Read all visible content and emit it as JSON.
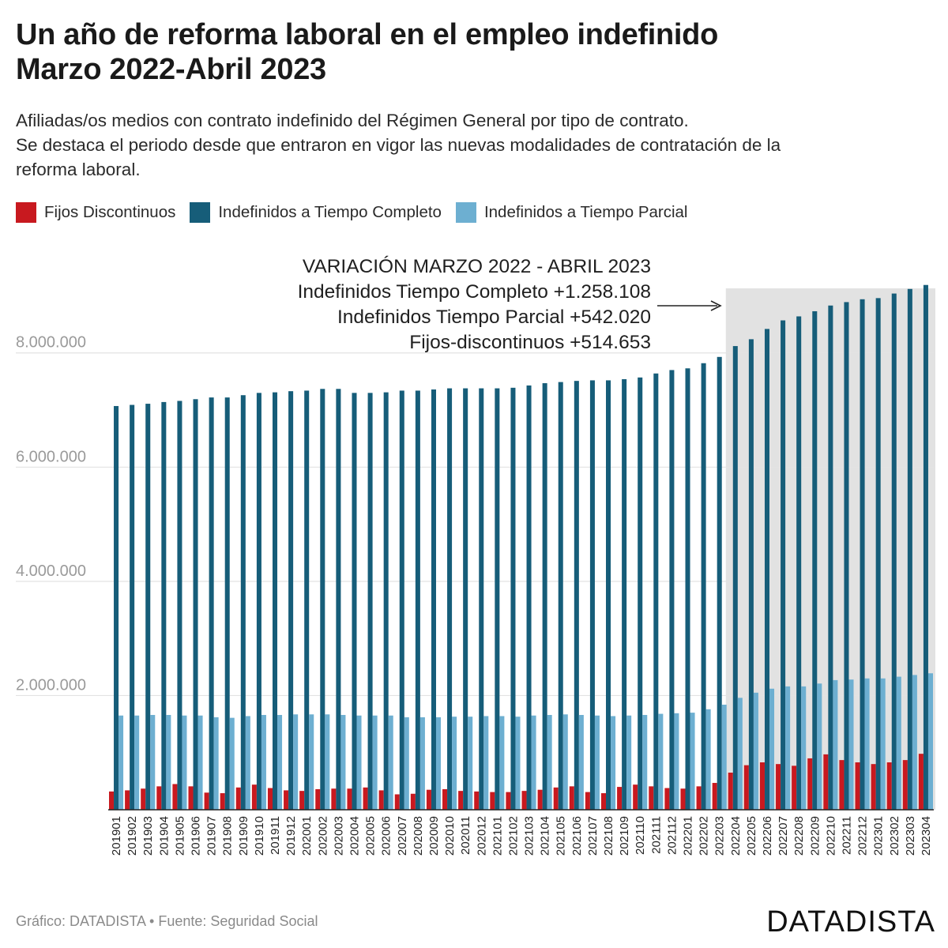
{
  "title_line1": "Un año de reforma laboral en el empleo indefinido",
  "title_line2": "Marzo 2022-Abril 2023",
  "subtitle_line1": "Afiliadas/os medios con contrato indefinido del Régimen General por tipo de contrato.",
  "subtitle_line2": "Se destaca el periodo desde que entraron en vigor las nuevas modalidades de contratación de la",
  "subtitle_line3": "reforma laboral.",
  "legend": [
    {
      "label": "Fijos Discontinuos",
      "color": "#c8191f"
    },
    {
      "label": "Indefinidos a Tiempo Completo",
      "color": "#165d79"
    },
    {
      "label": "Indefinidos a Tiempo Parcial",
      "color": "#6dafd1"
    }
  ],
  "annotation": {
    "line1": "VARIACIÓN MARZO 2022 - ABRIL 2023",
    "line2": "Indefinidos Tiempo Completo +1.258.108",
    "line3": "Indefinidos Tiempo Parcial +542.020",
    "line4": "Fijos-discontinuos +514.653"
  },
  "footer_source": "Gráfico: DATADISTA • Fuente: Seguridad Social",
  "footer_brand": "DATADISTA",
  "chart_data": {
    "type": "bar",
    "categories": [
      "201901",
      "201902",
      "201903",
      "201904",
      "201905",
      "201906",
      "201907",
      "201908",
      "201909",
      "201910",
      "201911",
      "201912",
      "202001",
      "202002",
      "202003",
      "202004",
      "202005",
      "202006",
      "202007",
      "202008",
      "202009",
      "202010",
      "202011",
      "202012",
      "202101",
      "202102",
      "202103",
      "202104",
      "202105",
      "202106",
      "202107",
      "202108",
      "202109",
      "202110",
      "202111",
      "202112",
      "202201",
      "202202",
      "202203",
      "202204",
      "202205",
      "202206",
      "202207",
      "202208",
      "202209",
      "202210",
      "202211",
      "202212",
      "202301",
      "202302",
      "202303",
      "202304"
    ],
    "series": [
      {
        "name": "Fijos Discontinuos",
        "color": "#c8191f",
        "values": [
          320000,
          340000,
          370000,
          410000,
          450000,
          410000,
          300000,
          290000,
          390000,
          440000,
          380000,
          340000,
          330000,
          360000,
          370000,
          370000,
          390000,
          340000,
          270000,
          280000,
          350000,
          360000,
          330000,
          320000,
          310000,
          310000,
          330000,
          350000,
          390000,
          410000,
          310000,
          290000,
          400000,
          440000,
          410000,
          380000,
          370000,
          410000,
          470000,
          650000,
          780000,
          830000,
          800000,
          770000,
          900000,
          970000,
          870000,
          830000,
          800000,
          830000,
          870000,
          980000
        ]
      },
      {
        "name": "Indefinidos a Tiempo Completo",
        "color": "#165d79",
        "values": [
          7070000,
          7090000,
          7110000,
          7140000,
          7160000,
          7190000,
          7220000,
          7220000,
          7260000,
          7300000,
          7310000,
          7330000,
          7340000,
          7370000,
          7370000,
          7300000,
          7300000,
          7310000,
          7340000,
          7340000,
          7360000,
          7380000,
          7380000,
          7380000,
          7380000,
          7390000,
          7430000,
          7470000,
          7490000,
          7510000,
          7520000,
          7520000,
          7540000,
          7570000,
          7640000,
          7700000,
          7730000,
          7820000,
          7930000,
          8120000,
          8240000,
          8420000,
          8570000,
          8640000,
          8730000,
          8830000,
          8890000,
          8940000,
          8960000,
          9040000,
          9120000,
          9190000
        ]
      },
      {
        "name": "Indefinidos a Tiempo Parcial",
        "color": "#6dafd1",
        "values": [
          1650000,
          1650000,
          1660000,
          1660000,
          1650000,
          1650000,
          1620000,
          1610000,
          1640000,
          1660000,
          1660000,
          1670000,
          1670000,
          1670000,
          1660000,
          1650000,
          1650000,
          1650000,
          1620000,
          1620000,
          1620000,
          1630000,
          1630000,
          1640000,
          1640000,
          1630000,
          1650000,
          1660000,
          1670000,
          1660000,
          1650000,
          1640000,
          1650000,
          1660000,
          1680000,
          1690000,
          1700000,
          1760000,
          1840000,
          1960000,
          2050000,
          2120000,
          2160000,
          2160000,
          2210000,
          2270000,
          2280000,
          2300000,
          2300000,
          2330000,
          2360000,
          2390000
        ]
      }
    ],
    "ylim": [
      0,
      9200000
    ],
    "yticks": [
      2000000,
      4000000,
      6000000,
      8000000
    ],
    "ytick_labels": [
      "2.000.000",
      "4.000.000",
      "6.000.000",
      "8.000.000"
    ],
    "highlight_range": [
      "202204",
      "202304"
    ],
    "grid": true
  }
}
